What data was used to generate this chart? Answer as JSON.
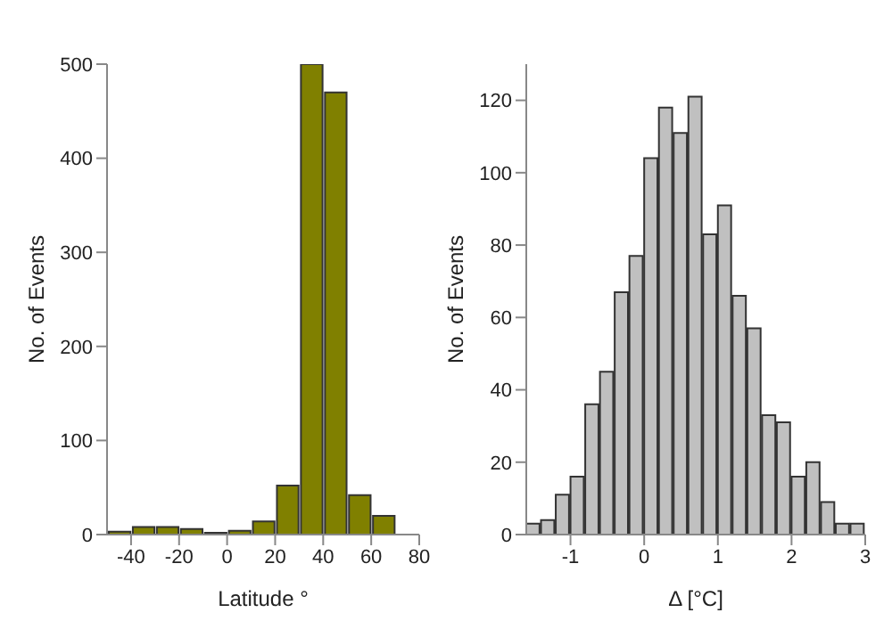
{
  "chart_data": [
    {
      "type": "histogram",
      "xlabel": "Latitude °",
      "ylabel": "No. of Events",
      "color": "#808000",
      "bins": [
        -50,
        -40,
        -30,
        -20,
        -10,
        0,
        10,
        20,
        30,
        40,
        50,
        60,
        70,
        80
      ],
      "values": [
        3,
        8,
        8,
        6,
        2,
        4,
        14,
        52,
        500,
        470,
        42,
        20,
        0
      ],
      "xlim": [
        -50,
        80
      ],
      "xticks": [
        -40,
        -20,
        0,
        20,
        40,
        60,
        80
      ],
      "ylim": [
        0,
        500
      ],
      "yticks": [
        0,
        100,
        200,
        300,
        400,
        500
      ],
      "grid": false
    },
    {
      "type": "histogram",
      "xlabel": "Δ [°C]",
      "ylabel": "No. of Events",
      "color": "#c0c0c0",
      "bins": [
        -1.6,
        -1.4,
        -1.2,
        -1.0,
        -0.8,
        -0.6,
        -0.4,
        -0.2,
        0,
        0.2,
        0.4,
        0.6,
        0.8,
        1.0,
        1.2,
        1.4,
        1.6,
        1.8,
        2.0,
        2.2,
        2.4,
        2.6,
        2.8,
        3.0
      ],
      "values": [
        3,
        4,
        11,
        16,
        36,
        45,
        67,
        77,
        104,
        118,
        111,
        121,
        83,
        91,
        66,
        57,
        33,
        31,
        16,
        20,
        9,
        3,
        3
      ],
      "xlim": [
        -1.6,
        3
      ],
      "xticks": [
        -1,
        0,
        1,
        2,
        3
      ],
      "ylim": [
        0,
        130
      ],
      "yticks": [
        0,
        20,
        40,
        60,
        80,
        100,
        120
      ],
      "grid": false
    }
  ]
}
